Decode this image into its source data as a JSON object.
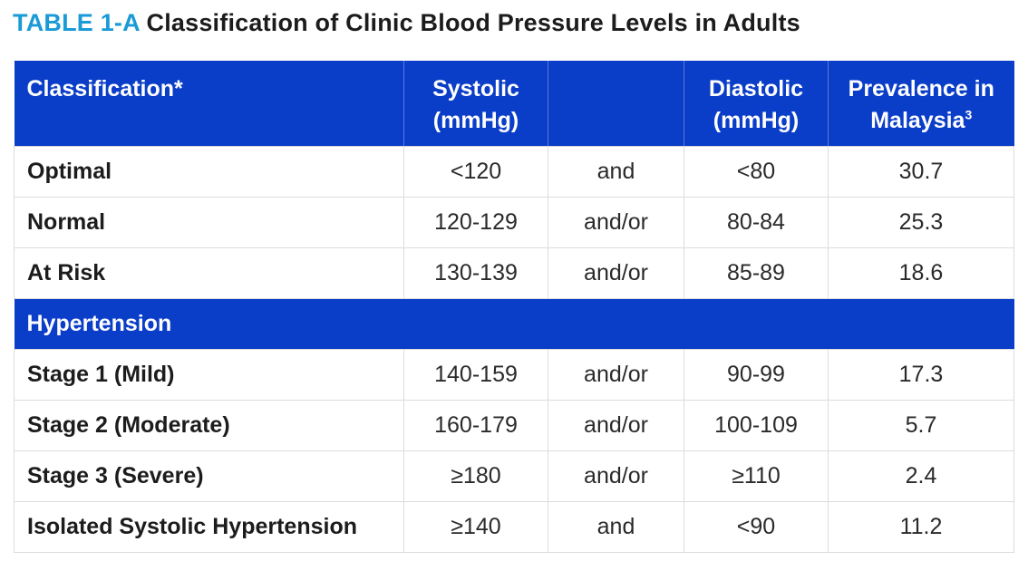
{
  "title": {
    "tag": "TABLE 1-A",
    "text": "Classification of Clinic Blood Pressure Levels in Adults"
  },
  "header": {
    "classification": "Classification*",
    "systolic_line1": "Systolic",
    "systolic_line2": "(mmHg)",
    "connector": "",
    "diastolic_line1": "Diastolic",
    "diastolic_line2": "(mmHg)",
    "prevalence_line1": "Prevalence in",
    "prevalence_line2": "Malaysia",
    "prevalence_ref": "3"
  },
  "rows": [
    {
      "classification": "Optimal",
      "systolic": "<120",
      "connector": "and",
      "diastolic": "<80",
      "prevalence": "30.7"
    },
    {
      "classification": "Normal",
      "systolic": "120-129",
      "connector": "and/or",
      "diastolic": "80-84",
      "prevalence": "25.3"
    },
    {
      "classification": "At Risk",
      "systolic": "130-139",
      "connector": "and/or",
      "diastolic": "85-89",
      "prevalence": "18.6"
    }
  ],
  "section": {
    "label": "Hypertension"
  },
  "hypertension_rows": [
    {
      "classification": "Stage 1 (Mild)",
      "systolic": "140-159",
      "connector": "and/or",
      "diastolic": "90-99",
      "prevalence": "17.3"
    },
    {
      "classification": "Stage 2 (Moderate)",
      "systolic": "160-179",
      "connector": "and/or",
      "diastolic": "100-109",
      "prevalence": "5.7"
    },
    {
      "classification": "Stage 3 (Severe)",
      "systolic": "≥180",
      "connector": "and/or",
      "diastolic": "≥110",
      "prevalence": "2.4"
    },
    {
      "classification": "Isolated Systolic Hypertension",
      "systolic": "≥140",
      "connector": "and",
      "diastolic": "<90",
      "prevalence": "11.2"
    }
  ],
  "colors": {
    "header_bg": "#0a3dc8",
    "title_tag": "#1a9ad6"
  }
}
